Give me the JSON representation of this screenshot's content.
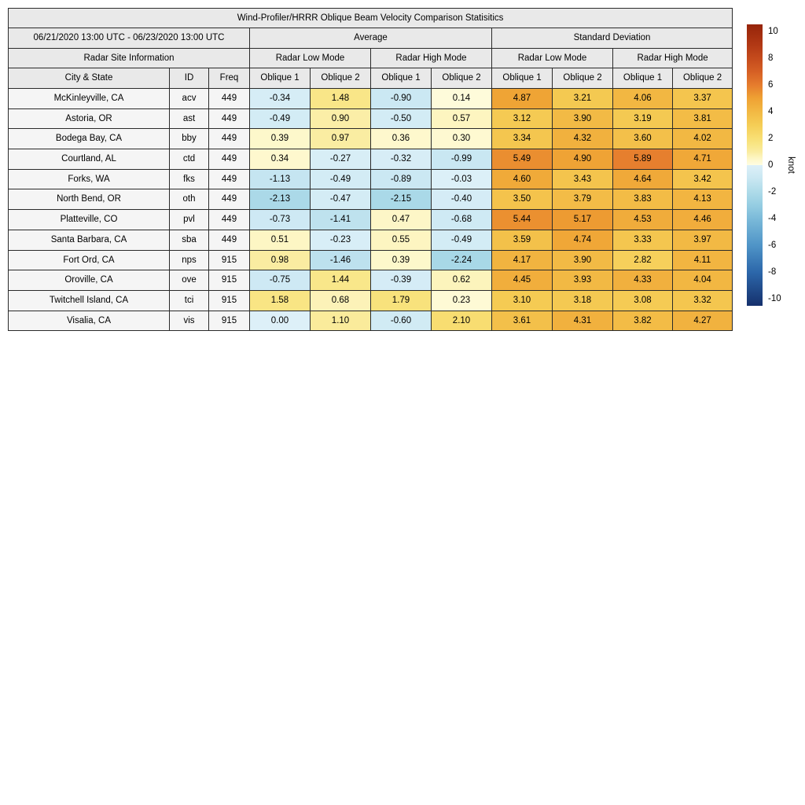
{
  "chart_data": {
    "type": "table",
    "title": "Wind-Profiler/HRRR Oblique Beam Velocity Comparison Statisitics",
    "header": {
      "date_range": "06/21/2020 13:00 UTC - 06/23/2020 13:00 UTC",
      "average_label": "Average",
      "std_label": "Standard Deviation",
      "site_info_label": "Radar Site Information",
      "low_mode_label": "Radar Low Mode",
      "high_mode_label": "Radar High Mode",
      "col_city": "City & State",
      "col_id": "ID",
      "col_freq": "Freq",
      "col_oblique1": "Oblique 1",
      "col_oblique2": "Oblique 2"
    },
    "rows": [
      {
        "city": "McKinleyville, CA",
        "id": "acv",
        "freq": "449",
        "values": [
          "-0.34",
          "1.48",
          "-0.90",
          "0.14",
          "4.87",
          "3.21",
          "4.06",
          "3.37"
        ]
      },
      {
        "city": "Astoria, OR",
        "id": "ast",
        "freq": "449",
        "values": [
          "-0.49",
          "0.90",
          "-0.50",
          "0.57",
          "3.12",
          "3.90",
          "3.19",
          "3.81"
        ]
      },
      {
        "city": "Bodega Bay, CA",
        "id": "bby",
        "freq": "449",
        "values": [
          "0.39",
          "0.97",
          "0.36",
          "0.30",
          "3.34",
          "4.32",
          "3.60",
          "4.02"
        ]
      },
      {
        "city": "Courtland, AL",
        "id": "ctd",
        "freq": "449",
        "values": [
          "0.34",
          "-0.27",
          "-0.32",
          "-0.99",
          "5.49",
          "4.90",
          "5.89",
          "4.71"
        ]
      },
      {
        "city": "Forks, WA",
        "id": "fks",
        "freq": "449",
        "values": [
          "-1.13",
          "-0.49",
          "-0.89",
          "-0.03",
          "4.60",
          "3.43",
          "4.64",
          "3.42"
        ]
      },
      {
        "city": "North Bend, OR",
        "id": "oth",
        "freq": "449",
        "values": [
          "-2.13",
          "-0.47",
          "-2.15",
          "-0.40",
          "3.50",
          "3.79",
          "3.83",
          "4.13"
        ]
      },
      {
        "city": "Platteville, CO",
        "id": "pvl",
        "freq": "449",
        "values": [
          "-0.73",
          "-1.41",
          "0.47",
          "-0.68",
          "5.44",
          "5.17",
          "4.53",
          "4.46"
        ]
      },
      {
        "city": "Santa Barbara, CA",
        "id": "sba",
        "freq": "449",
        "values": [
          "0.51",
          "-0.23",
          "0.55",
          "-0.49",
          "3.59",
          "4.74",
          "3.33",
          "3.97"
        ]
      },
      {
        "city": "Fort Ord, CA",
        "id": "nps",
        "freq": "915",
        "values": [
          "0.98",
          "-1.46",
          "0.39",
          "-2.24",
          "4.17",
          "3.90",
          "2.82",
          "4.11"
        ]
      },
      {
        "city": "Oroville, CA",
        "id": "ove",
        "freq": "915",
        "values": [
          "-0.75",
          "1.44",
          "-0.39",
          "0.62",
          "4.45",
          "3.93",
          "4.33",
          "4.04"
        ]
      },
      {
        "city": "Twitchell Island, CA",
        "id": "tci",
        "freq": "915",
        "values": [
          "1.58",
          "0.68",
          "1.79",
          "0.23",
          "3.10",
          "3.18",
          "3.08",
          "3.32"
        ]
      },
      {
        "city": "Visalia, CA",
        "id": "vis",
        "freq": "915",
        "values": [
          "0.00",
          "1.10",
          "-0.60",
          "2.10",
          "3.61",
          "4.31",
          "3.82",
          "4.27"
        ]
      }
    ],
    "colorbar": {
      "label": "knot",
      "ticks": [
        "10",
        "8",
        "6",
        "4",
        "2",
        "0",
        "-2",
        "-4",
        "-6",
        "-8",
        "-10"
      ],
      "vmin": -10.5,
      "vmax": 10.5
    },
    "colors": {
      "header_bg": "#e9e9e9",
      "site_bg": "#f5f5f5",
      "border": "#2a2a2a",
      "colormap_positive": [
        [
          0.0,
          "#fffde2"
        ],
        [
          0.5,
          "#fdf6c5"
        ],
        [
          1.0,
          "#faeca0"
        ],
        [
          1.5,
          "#f9e687"
        ],
        [
          2.0,
          "#f8df74"
        ],
        [
          3.0,
          "#f5cd55"
        ],
        [
          4.0,
          "#f2b843"
        ],
        [
          5.0,
          "#efa133"
        ],
        [
          6.0,
          "#e57b2d"
        ],
        [
          7.0,
          "#d55f24"
        ],
        [
          8.0,
          "#c44a1c"
        ],
        [
          9.0,
          "#b13814"
        ],
        [
          10.5,
          "#96240a"
        ]
      ],
      "colormap_negative": [
        [
          -10.5,
          "#15306c"
        ],
        [
          -8.0,
          "#2c67aa"
        ],
        [
          -6.0,
          "#4f94c7"
        ],
        [
          -4.0,
          "#7bbad9"
        ],
        [
          -3.0,
          "#95cde2"
        ],
        [
          -2.0,
          "#aedbe9"
        ],
        [
          -1.0,
          "#c9e7f2"
        ],
        [
          0.0,
          "#ddf0f8"
        ]
      ]
    }
  }
}
